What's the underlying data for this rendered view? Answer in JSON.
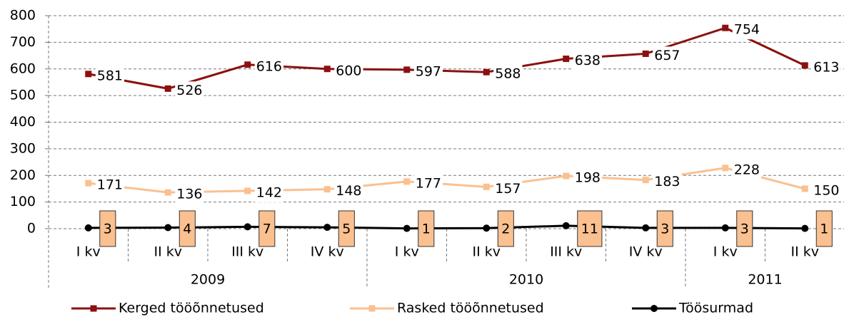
{
  "chart_data": {
    "type": "line",
    "categories": [
      "I kv",
      "II kv",
      "III kv",
      "IV kv",
      "I kv",
      "II kv",
      "III kv",
      "IV kv",
      "I kv",
      "II kv"
    ],
    "groups": [
      {
        "label": "2009",
        "span": 4
      },
      {
        "label": "2010",
        "span": 4
      },
      {
        "label": "2011",
        "span": 2
      }
    ],
    "series": [
      {
        "name": "Kerged tööõnnetused",
        "color": "#8b1010",
        "marker": "square",
        "values": [
          581,
          526,
          616,
          600,
          597,
          588,
          638,
          657,
          754,
          613
        ]
      },
      {
        "name": "Rasked tööõnnetused",
        "color": "#fac090",
        "marker": "square",
        "values": [
          171,
          136,
          142,
          148,
          177,
          157,
          198,
          183,
          228,
          150
        ]
      },
      {
        "name": "Töösurmad",
        "color": "#000000",
        "marker": "circle",
        "values": [
          3,
          4,
          7,
          5,
          1,
          2,
          11,
          3,
          3,
          1
        ]
      }
    ],
    "ylim": [
      0,
      800
    ],
    "yticks": [
      0,
      100,
      200,
      300,
      400,
      500,
      600,
      700,
      800
    ],
    "grid": true,
    "legend": "bottom"
  }
}
